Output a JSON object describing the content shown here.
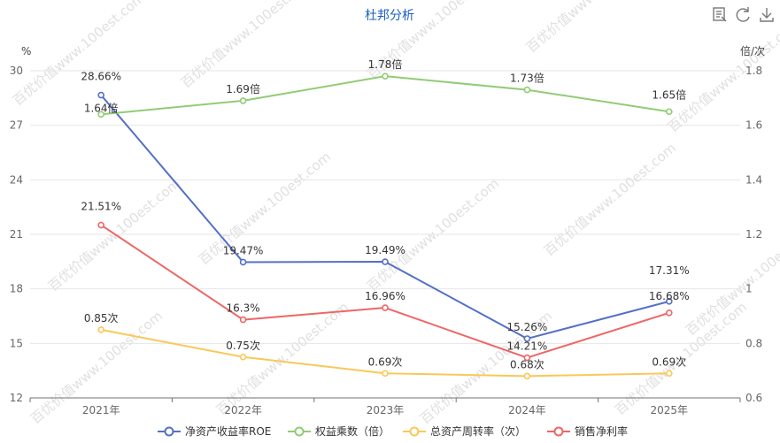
{
  "toolbar": {
    "icons": [
      "data-view-icon",
      "refresh-icon",
      "download-icon"
    ]
  },
  "watermark": "百优价值www.100est.com",
  "chart_data": {
    "type": "line",
    "title": "杜邦分析",
    "categories": [
      "2021年",
      "2022年",
      "2023年",
      "2024年",
      "2025年"
    ],
    "y_left": {
      "unit": "%",
      "min": 12,
      "max": 30,
      "ticks": [
        "12",
        "15",
        "18",
        "21",
        "24",
        "27",
        "30"
      ]
    },
    "y_right": {
      "unit": "倍/次",
      "min": 0.6,
      "max": 1.8,
      "ticks": [
        "0.6",
        "0.8",
        "1",
        "1.2",
        "1.4",
        "1.6",
        "1.8"
      ]
    },
    "grid": true,
    "legend_position": "bottom",
    "series": [
      {
        "name": "净资产收益率ROE",
        "axis": "left",
        "color": "#5470c6",
        "values": [
          28.66,
          19.47,
          19.49,
          15.26,
          17.31
        ],
        "labels": [
          "28.66%",
          "19.47%",
          "19.49%",
          "15.26%",
          "17.31%"
        ]
      },
      {
        "name": "权益乘数（倍）",
        "axis": "right",
        "color": "#91cc75",
        "values": [
          1.64,
          1.69,
          1.78,
          1.73,
          1.65
        ],
        "labels": [
          "1.64倍",
          "1.69倍",
          "1.78倍",
          "1.73倍",
          "1.65倍"
        ]
      },
      {
        "name": "总资产周转率（次）",
        "axis": "right",
        "color": "#fac858",
        "values": [
          0.85,
          0.75,
          0.69,
          0.68,
          0.69
        ],
        "labels": [
          "0.85次",
          "0.75次",
          "0.69次",
          "0.68次",
          "0.69次"
        ]
      },
      {
        "name": "销售净利率",
        "axis": "left",
        "color": "#ee6666",
        "values": [
          21.51,
          16.3,
          16.96,
          14.21,
          16.68
        ],
        "labels": [
          "21.51%",
          "16.3%",
          "16.96%",
          "14.21%",
          "16.68%"
        ]
      }
    ]
  }
}
